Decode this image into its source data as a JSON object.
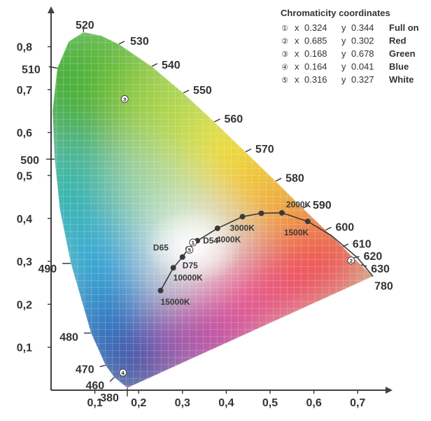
{
  "chart_data": {
    "type": "scatter",
    "xlim": [
      0,
      0.8
    ],
    "ylim": [
      0,
      0.85
    ],
    "x_ticks": [
      "0,1",
      "0,2",
      "0,3",
      "0,4",
      "0,5",
      "0,6",
      "0,7"
    ],
    "y_ticks": [
      "0,1",
      "0,2",
      "0,3",
      "0,4",
      "0,5",
      "0,6",
      "0,7",
      "0,8"
    ],
    "grid": true,
    "spectral_locus": [
      {
        "label": "380",
        "x": 0.174,
        "y": 0.005
      },
      {
        "label": "460",
        "x": 0.144,
        "y": 0.03
      },
      {
        "label": "470",
        "x": 0.124,
        "y": 0.058
      },
      {
        "label": "480",
        "x": 0.091,
        "y": 0.133
      },
      {
        "label": "490",
        "x": 0.045,
        "y": 0.295
      },
      {
        "label": "500",
        "x": 0.008,
        "y": 0.538
      },
      {
        "label": "510",
        "x": 0.014,
        "y": 0.75
      },
      {
        "label": "520",
        "x": 0.074,
        "y": 0.834
      },
      {
        "label": "530",
        "x": 0.155,
        "y": 0.806
      },
      {
        "label": "540",
        "x": 0.23,
        "y": 0.754
      },
      {
        "label": "550",
        "x": 0.302,
        "y": 0.692
      },
      {
        "label": "560",
        "x": 0.373,
        "y": 0.625
      },
      {
        "label": "570",
        "x": 0.444,
        "y": 0.555
      },
      {
        "label": "580",
        "x": 0.513,
        "y": 0.487
      },
      {
        "label": "590",
        "x": 0.575,
        "y": 0.424
      },
      {
        "label": "600",
        "x": 0.627,
        "y": 0.373
      },
      {
        "label": "610",
        "x": 0.666,
        "y": 0.334
      },
      {
        "label": "620",
        "x": 0.691,
        "y": 0.308
      },
      {
        "label": "630",
        "x": 0.708,
        "y": 0.292
      },
      {
        "label": "780",
        "x": 0.735,
        "y": 0.265
      }
    ],
    "planckian_locus": [
      {
        "label": "15000K",
        "x": 0.25,
        "y": 0.232
      },
      {
        "label": "10000K",
        "x": 0.279,
        "y": 0.285
      },
      {
        "label": "D75",
        "x": 0.3,
        "y": 0.31
      },
      {
        "label": "D65",
        "x": 0.313,
        "y": 0.329
      },
      {
        "label": "D54",
        "x": 0.334,
        "y": 0.348
      },
      {
        "label": "4000K",
        "x": 0.38,
        "y": 0.377
      },
      {
        "label": "3000K",
        "x": 0.437,
        "y": 0.404
      },
      {
        "label": "2000K",
        "x": 0.527,
        "y": 0.413
      },
      {
        "label": "1500K",
        "x": 0.586,
        "y": 0.393
      }
    ],
    "legend": {
      "title": "Chromaticity coordinates",
      "position": "top-right",
      "entries": [
        {
          "marker": "①",
          "x_label": "x",
          "x": "0.324",
          "y_label": "y",
          "y": "0.344",
          "name": "Full on"
        },
        {
          "marker": "②",
          "x_label": "x",
          "x": "0.685",
          "y_label": "y",
          "y": "0.302",
          "name": "Red"
        },
        {
          "marker": "③",
          "x_label": "x",
          "x": "0.168",
          "y_label": "y",
          "y": "0.678",
          "name": "Green"
        },
        {
          "marker": "④",
          "x_label": "x",
          "x": "0.164",
          "y_label": "y",
          "y": "0.041",
          "name": "Blue"
        },
        {
          "marker": "⑤",
          "x_label": "x",
          "x": "0.316",
          "y_label": "y",
          "y": "0.327",
          "name": "White"
        }
      ]
    },
    "points": [
      {
        "marker": "①",
        "x": 0.324,
        "y": 0.344
      },
      {
        "marker": "②",
        "x": 0.685,
        "y": 0.302
      },
      {
        "marker": "③",
        "x": 0.168,
        "y": 0.678
      },
      {
        "marker": "④",
        "x": 0.164,
        "y": 0.041
      },
      {
        "marker": "⑤",
        "x": 0.316,
        "y": 0.327
      }
    ]
  },
  "colors": {
    "axis": "#404040",
    "text": "#333333",
    "curve": "#3a3a3a"
  }
}
